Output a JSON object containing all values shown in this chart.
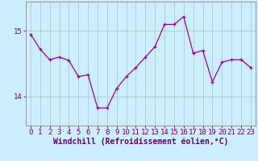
{
  "x": [
    0,
    1,
    2,
    3,
    4,
    5,
    6,
    7,
    8,
    9,
    10,
    11,
    12,
    13,
    14,
    15,
    16,
    17,
    18,
    19,
    20,
    21,
    22,
    23
  ],
  "y": [
    14.95,
    14.72,
    14.56,
    14.6,
    14.55,
    14.3,
    14.33,
    13.82,
    13.82,
    14.12,
    14.3,
    14.44,
    14.6,
    14.76,
    15.1,
    15.1,
    15.22,
    14.66,
    14.7,
    14.22,
    14.52,
    14.56,
    14.56,
    14.44
  ],
  "line_color": "#990099",
  "marker": "+",
  "marker_size": 3,
  "bg_color": "#cceeff",
  "grid_color": "#aacccc",
  "xlabel": "Windchill (Refroidissement éolien,°C)",
  "xlabel_fontsize": 7,
  "tick_fontsize": 6.5,
  "yticks": [
    14,
    15
  ],
  "ylim": [
    13.55,
    15.45
  ],
  "xlim": [
    -0.5,
    23.5
  ],
  "spine_color": "#888888"
}
